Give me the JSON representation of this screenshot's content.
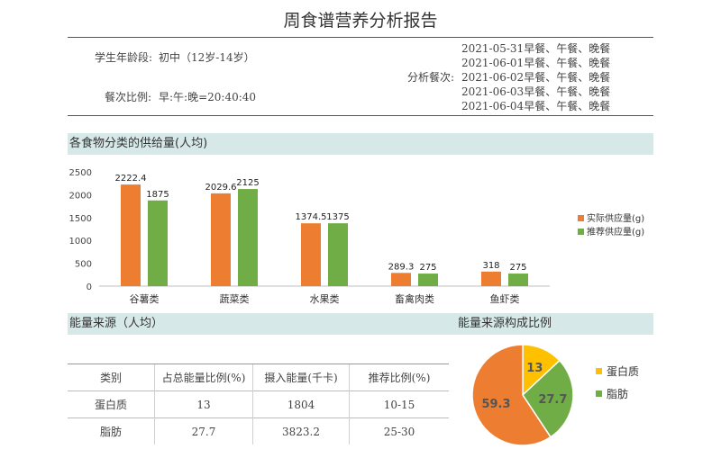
{
  "report": {
    "title": "周食谱营养分析报告",
    "age_label": "学生年龄段:",
    "age_value": "初中（12岁-14岁）",
    "ratio_label": "餐次比例:",
    "ratio_value": "早:午:晚=20:40:40",
    "meals_label": "分析餐次:",
    "meals": [
      "2021-05-31早餐、午餐、晚餐",
      "2021-06-01早餐、午餐、晚餐",
      "2021-06-02早餐、午餐、晚餐",
      "2021-06-03早餐、午餐、晚餐",
      "2021-06-04早餐、午餐、晚餐"
    ]
  },
  "sections": {
    "supply": "各食物分类的供给量(人均)",
    "energy": "能量来源（人均）",
    "energy_pie": "能量来源构成比例"
  },
  "colors": {
    "actual": "#ed7d31",
    "recommended": "#70ad47",
    "protein": "#ffc000",
    "band": "#d6e9e8"
  },
  "chart_data": [
    {
      "type": "bar",
      "title": "各食物分类的供给量(人均)",
      "categories": [
        "谷薯类",
        "蔬菜类",
        "水果类",
        "畜禽肉类",
        "鱼虾类"
      ],
      "series": [
        {
          "name": "实际供应量(g)",
          "values": [
            2222.4,
            2029.6,
            1374.5,
            289.3,
            318
          ]
        },
        {
          "name": "推荐供应量(g)",
          "values": [
            1875,
            2125,
            1375,
            275,
            275
          ]
        }
      ],
      "value_labels": [
        [
          "2222.4",
          "2029.6",
          "1374.5",
          "289.3",
          "318"
        ],
        [
          "1875",
          "2125",
          "1375",
          "275",
          "275"
        ]
      ],
      "ylim": [
        0,
        2500
      ],
      "yticks": [
        "0",
        "500",
        "1000",
        "1500",
        "2000",
        "2500"
      ],
      "grid": false,
      "legend": "right"
    },
    {
      "type": "pie",
      "title": "能量来源构成比例",
      "labels": [
        "蛋白质",
        "脂肪",
        ""
      ],
      "values": [
        13,
        27.7,
        59.3
      ],
      "value_labels": [
        "13",
        "27.7",
        "59.3"
      ],
      "legend": "right"
    }
  ],
  "energy_table": {
    "headers": [
      "类别",
      "占总能量比例(%)",
      "摄入能量(千卡)",
      "推荐比例(%)"
    ],
    "rows": [
      [
        "蛋白质",
        "13",
        "1804",
        "10-15"
      ],
      [
        "脂肪",
        "27.7",
        "3823.2",
        "25-30"
      ]
    ]
  }
}
